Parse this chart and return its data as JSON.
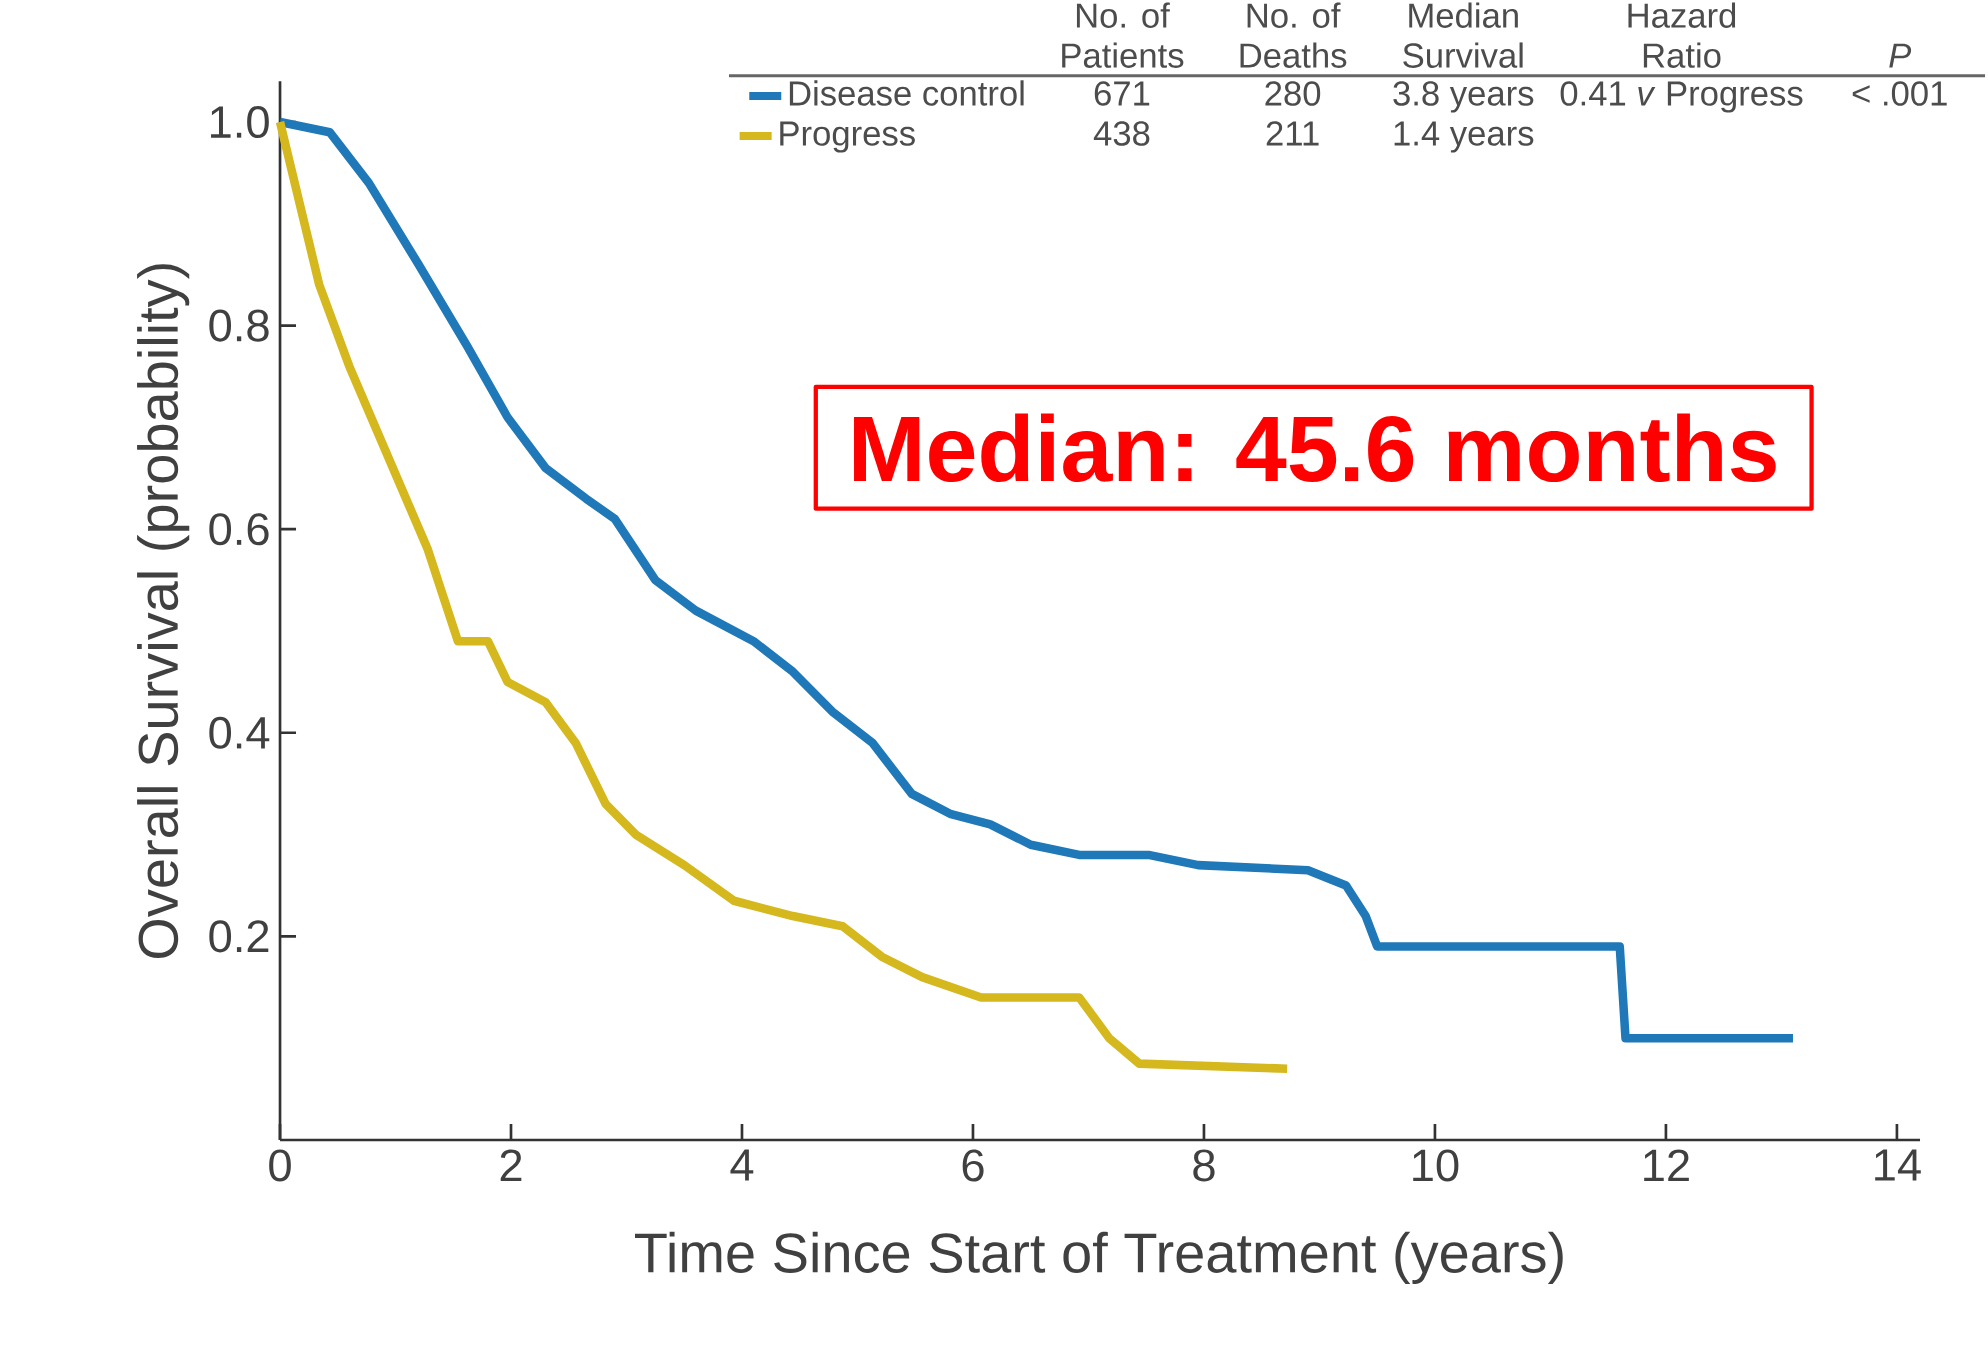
{
  "chart_data": {
    "type": "line",
    "xlabel": "Time Since Start of Treatment (years)",
    "ylabel": "Overall Survival (probability)",
    "xlim": [
      0,
      14.2
    ],
    "ylim": [
      0,
      1.04
    ],
    "xticks": [
      0,
      2,
      4,
      6,
      8,
      10,
      12,
      14
    ],
    "yticks": [
      {
        "value": 0.2,
        "label": "0.2"
      },
      {
        "value": 0.4,
        "label": "0.4"
      },
      {
        "value": 0.6,
        "label": "0.6"
      },
      {
        "value": 0.8,
        "label": "0.8"
      },
      {
        "value": 1.0,
        "label": "1.0"
      }
    ],
    "legend": "top left",
    "marker": "none",
    "line_style": "solid",
    "series": [
      {
        "name": "Disease control",
        "color": "#1f78b8",
        "x": [
          0,
          0.43,
          0.77,
          1.2,
          1.62,
          1.97,
          2.3,
          2.65,
          2.9,
          3.25,
          3.6,
          4.1,
          4.44,
          4.79,
          5.13,
          5.47,
          5.81,
          6.15,
          6.5,
          6.92,
          7.52,
          7.95,
          8.9,
          9.23,
          9.4,
          9.5,
          11.6,
          11.65,
          13.1
        ],
        "values": [
          1.0,
          0.99,
          0.94,
          0.86,
          0.78,
          0.71,
          0.66,
          0.63,
          0.61,
          0.55,
          0.52,
          0.49,
          0.46,
          0.42,
          0.39,
          0.34,
          0.32,
          0.31,
          0.29,
          0.28,
          0.28,
          0.27,
          0.265,
          0.25,
          0.22,
          0.19,
          0.19,
          0.1,
          0.1
        ]
      },
      {
        "name": "Progress",
        "color": "#d4b81e",
        "x": [
          0,
          0.17,
          0.34,
          0.6,
          0.94,
          1.28,
          1.54,
          1.8,
          1.97,
          2.3,
          2.56,
          2.82,
          3.08,
          3.5,
          3.93,
          4.44,
          4.87,
          5.21,
          5.56,
          6.07,
          6.92,
          7.18,
          7.44,
          8.72
        ],
        "values": [
          1.0,
          0.92,
          0.84,
          0.76,
          0.67,
          0.58,
          0.49,
          0.49,
          0.45,
          0.43,
          0.39,
          0.33,
          0.3,
          0.27,
          0.235,
          0.22,
          0.21,
          0.18,
          0.16,
          0.14,
          0.14,
          0.1,
          0.075,
          0.07
        ]
      }
    ],
    "annotations": [
      "No. of Patients",
      "No. of Deaths",
      "Median Survival",
      "Hazard Ratio",
      "*P*",
      "671",
      "280",
      "3.8 years",
      "0.41 *v* Progress",
      "< .001",
      "438",
      "211",
      "1.4 years",
      "Median: 45.6 months"
    ]
  }
}
